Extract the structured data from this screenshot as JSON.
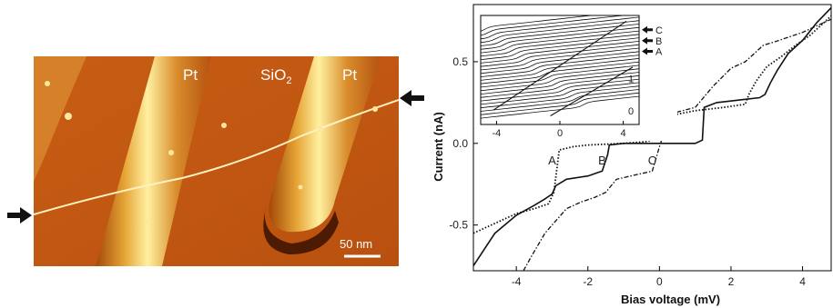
{
  "afm_image": {
    "labels": {
      "pt_left": "Pt",
      "sio2_prefix": "SiO",
      "sio2_sub": "2",
      "pt_right": "Pt"
    },
    "scale_bar": "50 nm",
    "icons": [
      "arrow-right-icon",
      "arrow-left-icon"
    ],
    "colors": {
      "substrate": "#c65a12",
      "ridge": "#e8b040",
      "highlight": "#fff2a8",
      "shadow": "#3a1000"
    }
  },
  "chart_data": [
    {
      "type": "line",
      "xlabel": "Bias voltage   (mV)",
      "ylabel": "Current   (nA)",
      "xlim": [
        -5.2,
        4.8
      ],
      "ylim": [
        -0.78,
        0.85
      ],
      "xticks": [
        -4,
        -2,
        0,
        2,
        4
      ],
      "yticks": [
        -0.5,
        0.0,
        0.5
      ],
      "xtick_labels": [
        "-4",
        "-2",
        "0",
        "2",
        "4"
      ],
      "ytick_labels": [
        "-0.5",
        "0.0",
        "0.5"
      ],
      "annotations": [
        {
          "text": "A",
          "x": -3.0,
          "y": -0.1
        },
        {
          "text": "B",
          "x": -1.6,
          "y": -0.1
        },
        {
          "text": "C",
          "x": -0.2,
          "y": -0.1
        }
      ],
      "series": [
        {
          "style": "solid",
          "x": [
            -5.2,
            -4.6,
            -4.0,
            -3.5,
            -3.2,
            -3.0,
            -2.9,
            -2.6,
            -2.0,
            -1.6,
            -1.45,
            -1.4,
            -1.0,
            0.0,
            1.0,
            1.2,
            1.25,
            1.6,
            2.4,
            2.8,
            2.95,
            3.1,
            3.3,
            3.6,
            4.0,
            4.4,
            4.8
          ],
          "y": [
            -0.75,
            -0.55,
            -0.44,
            -0.38,
            -0.34,
            -0.31,
            -0.26,
            -0.22,
            -0.2,
            -0.17,
            -0.07,
            -0.01,
            0.0,
            0.0,
            0.0,
            0.02,
            0.22,
            0.25,
            0.27,
            0.28,
            0.3,
            0.37,
            0.45,
            0.55,
            0.63,
            0.74,
            0.83
          ]
        },
        {
          "style": "dotted",
          "x": [
            -5.2,
            -4.5,
            -4.0,
            -3.5,
            -3.1,
            -2.95,
            -2.8,
            -2.4,
            -2.0,
            -1.0,
            -0.4,
            -0.2,
            -0.05,
            0.05,
            0.3,
            1.0,
            1.8,
            2.4,
            2.5,
            2.7,
            3.0,
            3.4,
            3.8,
            4.2,
            4.8
          ],
          "y": [
            -0.55,
            -0.48,
            -0.43,
            -0.4,
            -0.37,
            -0.3,
            -0.04,
            -0.02,
            -0.01,
            0.0,
            0.01,
            0.02,
            0.08,
            0.16,
            0.17,
            0.2,
            0.22,
            0.24,
            0.3,
            0.38,
            0.47,
            0.53,
            0.6,
            0.66,
            0.78
          ]
        },
        {
          "style": "dashdot",
          "x": [
            -3.8,
            -3.6,
            -3.2,
            -2.6,
            -2.2,
            -1.8,
            -1.5,
            -1.2,
            -0.6,
            -0.2,
            0.0,
            0.3,
            1.0,
            1.5,
            2.0,
            2.4,
            2.7,
            2.9,
            3.2,
            3.6,
            4.0,
            4.4,
            4.8
          ],
          "y": [
            -0.78,
            -0.7,
            -0.55,
            -0.4,
            -0.36,
            -0.33,
            -0.3,
            -0.22,
            -0.19,
            -0.17,
            -0.02,
            0.18,
            0.22,
            0.35,
            0.46,
            0.5,
            0.56,
            0.6,
            0.62,
            0.65,
            0.68,
            0.72,
            0.76
          ]
        }
      ]
    },
    {
      "type": "line",
      "xlim": [
        -5,
        5
      ],
      "ylim": [
        -0.3,
        3.5
      ],
      "xticks": [
        -4,
        0,
        4
      ],
      "xtick_labels": [
        "-4",
        "0",
        "4"
      ],
      "right_labels": [
        "C",
        "B",
        "A",
        "1",
        "0"
      ],
      "right_label_y": [
        3.0,
        2.62,
        2.25,
        1.3,
        0.18
      ],
      "arrow_labels": [
        "C",
        "B",
        "A"
      ],
      "curve_count": 26,
      "curve_offset": 0.12,
      "slope": 0.06
    }
  ]
}
